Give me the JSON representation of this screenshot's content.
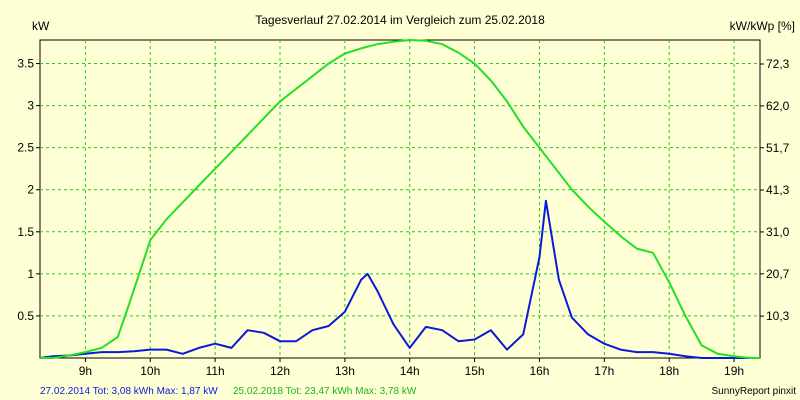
{
  "colors": {
    "background": "#ffffd6",
    "grid": "#22cc22",
    "series_2014": "#0a1ad6",
    "series_2018": "#22e022"
  },
  "chart_data": {
    "type": "line",
    "title": "Tagesverlauf 27.02.2014 im Vergleich zum 25.02.2018",
    "ylabel": "kW",
    "y2label": "kW/kWp [%]",
    "xlim": [
      8.3,
      19.4
    ],
    "ylim": [
      0,
      3.78
    ],
    "y2lim": [
      0,
      78.2
    ],
    "grid": true,
    "x_ticks": [
      {
        "v": 9,
        "t": "9h"
      },
      {
        "v": 10,
        "t": "10h"
      },
      {
        "v": 11,
        "t": "11h"
      },
      {
        "v": 12,
        "t": "12h"
      },
      {
        "v": 13,
        "t": "13h"
      },
      {
        "v": 14,
        "t": "14h"
      },
      {
        "v": 15,
        "t": "15h"
      },
      {
        "v": 16,
        "t": "16h"
      },
      {
        "v": 17,
        "t": "17h"
      },
      {
        "v": 18,
        "t": "18h"
      },
      {
        "v": 19,
        "t": "19h"
      }
    ],
    "y_ticks": [
      {
        "v": 0.5,
        "t": "0.5"
      },
      {
        "v": 1,
        "t": "1"
      },
      {
        "v": 1.5,
        "t": "1.5"
      },
      {
        "v": 2,
        "t": "2"
      },
      {
        "v": 2.5,
        "t": "2.5"
      },
      {
        "v": 3,
        "t": "3"
      },
      {
        "v": 3.5,
        "t": "3.5"
      }
    ],
    "y2_ticks": [
      {
        "v": 10.3,
        "t": "10,3"
      },
      {
        "v": 20.7,
        "t": "20,7"
      },
      {
        "v": 31.0,
        "t": "31,0"
      },
      {
        "v": 41.3,
        "t": "41,3"
      },
      {
        "v": 51.7,
        "t": "51,7"
      },
      {
        "v": 62.0,
        "t": "62,0"
      },
      {
        "v": 72.3,
        "t": "72,3"
      }
    ],
    "series": [
      {
        "key": "series_2014",
        "x": [
          8.3,
          8.5,
          8.75,
          9.0,
          9.25,
          9.5,
          9.75,
          10.0,
          10.25,
          10.5,
          10.75,
          11.0,
          11.25,
          11.5,
          11.75,
          12.0,
          12.25,
          12.5,
          12.75,
          13.0,
          13.25,
          13.35,
          13.5,
          13.75,
          14.0,
          14.25,
          14.5,
          14.75,
          15.0,
          15.25,
          15.5,
          15.75,
          16.0,
          16.1,
          16.3,
          16.5,
          16.75,
          17.0,
          17.25,
          17.5,
          17.75,
          18.0,
          18.25,
          18.5,
          18.75,
          19.0,
          19.25
        ],
        "values": [
          0.0,
          0.02,
          0.03,
          0.05,
          0.07,
          0.07,
          0.08,
          0.1,
          0.1,
          0.05,
          0.12,
          0.17,
          0.12,
          0.33,
          0.3,
          0.2,
          0.2,
          0.33,
          0.38,
          0.55,
          0.93,
          1.0,
          0.8,
          0.4,
          0.12,
          0.37,
          0.33,
          0.2,
          0.22,
          0.33,
          0.1,
          0.28,
          1.2,
          1.87,
          0.93,
          0.48,
          0.28,
          0.17,
          0.1,
          0.07,
          0.07,
          0.05,
          0.02,
          0.0,
          0.0,
          0.0,
          0.0
        ]
      },
      {
        "key": "series_2018",
        "x": [
          8.3,
          8.5,
          8.75,
          9.0,
          9.25,
          9.5,
          9.7,
          9.85,
          10.0,
          10.25,
          10.5,
          10.75,
          11.0,
          11.25,
          11.5,
          11.75,
          12.0,
          12.25,
          12.5,
          12.75,
          13.0,
          13.25,
          13.5,
          13.75,
          14.0,
          14.25,
          14.5,
          14.75,
          15.0,
          15.25,
          15.5,
          15.75,
          16.0,
          16.25,
          16.5,
          16.75,
          17.0,
          17.25,
          17.5,
          17.75,
          18.0,
          18.25,
          18.5,
          18.75,
          19.0,
          19.25,
          19.4
        ],
        "values": [
          0.0,
          0.0,
          0.03,
          0.07,
          0.12,
          0.25,
          0.7,
          1.05,
          1.4,
          1.65,
          1.85,
          2.05,
          2.25,
          2.45,
          2.65,
          2.85,
          3.05,
          3.2,
          3.35,
          3.5,
          3.62,
          3.68,
          3.73,
          3.76,
          3.78,
          3.77,
          3.73,
          3.63,
          3.5,
          3.3,
          3.05,
          2.75,
          2.5,
          2.25,
          2.0,
          1.8,
          1.62,
          1.45,
          1.3,
          1.25,
          0.9,
          0.5,
          0.15,
          0.05,
          0.02,
          0.0,
          0.0
        ]
      }
    ]
  },
  "footer": {
    "left_a": "27.02.2014 Tot: 3,08 kWh Max: 1,87 kW",
    "left_b": "25.02.2018 Tot: 23,47 kWh Max: 3,78 kW",
    "right": "SunnyReport pinxit"
  }
}
